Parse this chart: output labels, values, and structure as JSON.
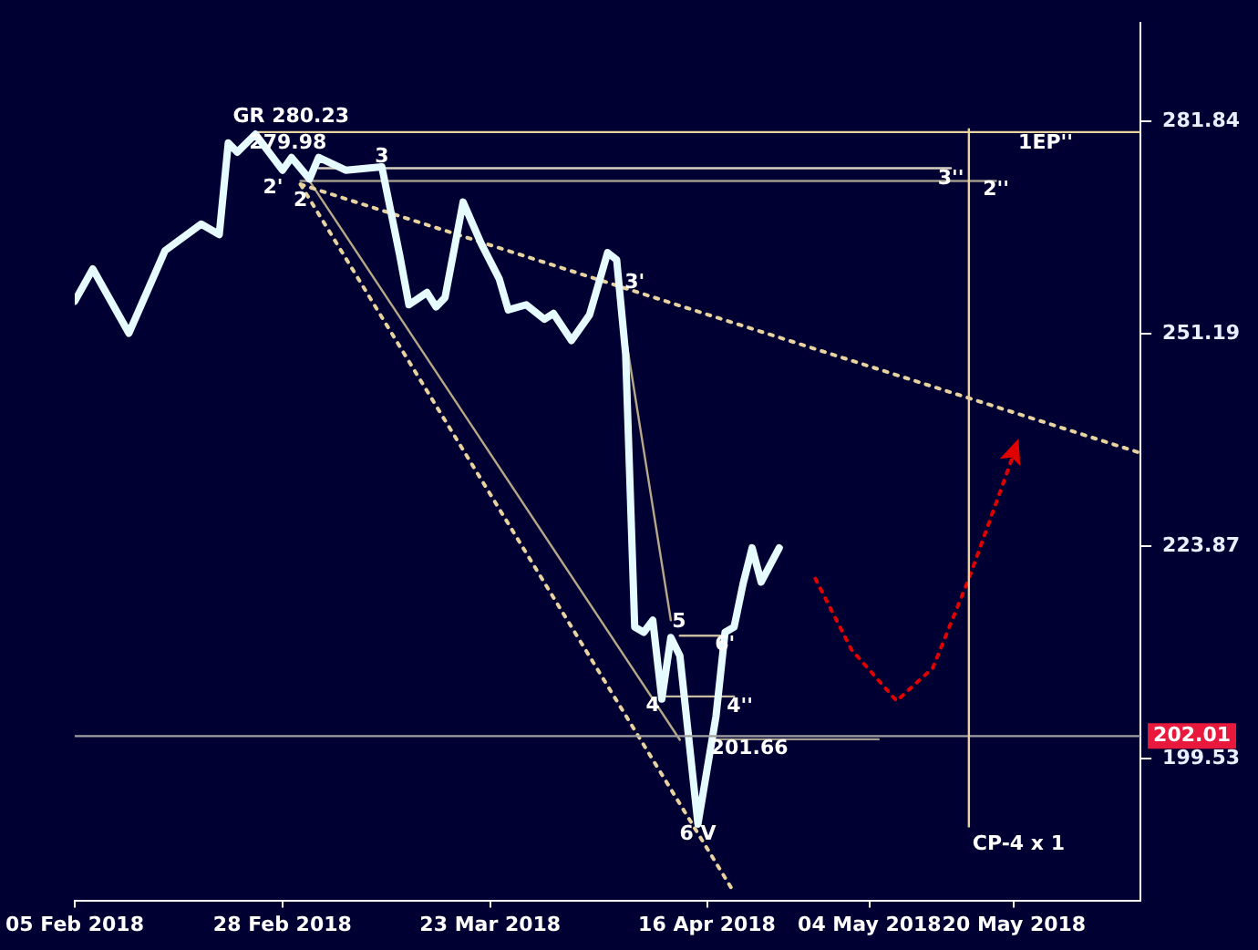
{
  "chart_data": {
    "type": "line",
    "log": "y",
    "grid": false,
    "xlim": [
      "2018-02-05",
      "2018-06-03"
    ],
    "xticks": [
      {
        "value": "2018-02-05",
        "label": "05 Feb 2018"
      },
      {
        "value": "2018-02-28",
        "label": "28 Feb 2018"
      },
      {
        "value": "2018-03-23",
        "label": "23 Mar 2018"
      },
      {
        "value": "2018-04-16",
        "label": "16 Apr 2018"
      },
      {
        "value": "2018-05-04",
        "label": "04 May 2018"
      },
      {
        "value": "2018-05-20",
        "label": "20 May 2018"
      }
    ],
    "ylim": [
      184.8,
      297.3
    ],
    "yticks": [
      199.53,
      223.87,
      251.19,
      281.84
    ],
    "series": [
      {
        "type": "line",
        "color": "#e6fbff",
        "x": [
          "2018-02-05",
          "2018-02-07",
          "2018-02-11",
          "2018-02-15",
          "2018-02-19",
          "2018-02-21",
          "2018-02-22",
          "2018-02-23",
          "2018-02-25",
          "2018-02-28",
          "2018-03-01",
          "2018-03-03",
          "2018-03-04",
          "2018-03-07",
          "2018-03-11",
          "2018-03-13",
          "2018-03-14",
          "2018-03-16",
          "2018-03-17",
          "2018-03-18",
          "2018-03-20",
          "2018-03-22",
          "2018-03-24",
          "2018-03-25",
          "2018-03-27",
          "2018-03-29",
          "2018-03-30",
          "2018-04-01",
          "2018-04-03",
          "2018-04-05",
          "2018-04-06",
          "2018-04-07",
          "2018-04-08",
          "2018-04-09",
          "2018-04-10",
          "2018-04-11",
          "2018-04-12",
          "2018-04-13",
          "2018-04-15",
          "2018-04-17",
          "2018-04-18",
          "2018-04-19",
          "2018-04-20",
          "2018-04-21",
          "2018-04-22",
          "2018-04-24"
        ],
        "values": [
          255.7,
          260.2,
          251.3,
          262.8,
          266.6,
          265.1,
          278.6,
          277.2,
          279.9,
          274.5,
          276.4,
          273.2,
          276.4,
          274.5,
          275.0,
          262.0,
          255.2,
          256.9,
          254.9,
          256.2,
          269.8,
          263.8,
          258.8,
          254.5,
          255.2,
          253.2,
          254.0,
          250.3,
          253.8,
          262.5,
          261.5,
          248.4,
          214.3,
          213.7,
          215.1,
          206.1,
          213.1,
          211.0,
          192.6,
          204.2,
          213.7,
          214.3,
          219.4,
          223.7,
          219.6,
          223.7
        ]
      },
      {
        "type": "line",
        "color": "#e8d3a0",
        "x": [
          "2018-02-25",
          "2018-06-03"
        ],
        "values": [
          280.23,
          280.23
        ]
      },
      {
        "type": "line",
        "color": "#d8d0c0",
        "x": [
          "2018-03-04",
          "2018-05-13"
        ],
        "values": [
          274.8,
          274.8
        ]
      },
      {
        "type": "line",
        "color": "#a09a8a",
        "x": [
          "2018-03-02",
          "2018-05-18"
        ],
        "values": [
          272.9,
          272.9
        ]
      },
      {
        "type": "line",
        "color": "#c8bca0",
        "x": [
          "2018-04-13",
          "2018-04-18"
        ],
        "values": [
          213.3,
          213.3
        ]
      },
      {
        "type": "line",
        "color": "#c8bca0",
        "x": [
          "2018-04-11",
          "2018-04-19"
        ],
        "values": [
          206.4,
          206.4
        ]
      },
      {
        "type": "line",
        "color": "#a09a8a",
        "x": [
          "2018-04-17",
          "2018-05-05"
        ],
        "values": [
          201.66,
          201.66
        ]
      },
      {
        "type": "line",
        "color": "#e8d3a0",
        "line_style": "dotted",
        "x": [
          "2018-03-02",
          "2018-06-03"
        ],
        "values": [
          272.4,
          235.5
        ]
      },
      {
        "type": "line",
        "color": "#e8d3a0",
        "line_style": "dotted",
        "x": [
          "2018-03-02",
          "2018-04-19"
        ],
        "values": [
          272.4,
          185.6
        ]
      },
      {
        "type": "line",
        "color": "#b8a888",
        "x": [
          "2018-03-03",
          "2018-04-13"
        ],
        "values": [
          272.9,
          201.6
        ]
      },
      {
        "type": "line",
        "color": "#b8a888",
        "x": [
          "2018-04-07",
          "2018-04-12"
        ],
        "values": [
          250.8,
          215.1
        ]
      },
      {
        "type": "line",
        "color": "#e00000",
        "line_style": "dotted",
        "x": [
          "2018-04-28",
          "2018-05-02",
          "2018-05-07",
          "2018-05-11",
          "2018-05-15",
          "2018-05-20"
        ],
        "values": [
          220.0,
          211.7,
          205.9,
          209.6,
          220.0,
          235.5
        ]
      }
    ],
    "ref_lines": [
      {
        "axis": "y",
        "value": 202.01,
        "label": "202.01",
        "color": "#a0a0a0"
      },
      {
        "axis": "x",
        "value": "2018-05-15",
        "label": "CP-4 x 1",
        "color": "#e8d3a0"
      }
    ],
    "annotations": [
      "GR 280.23",
      "279.98",
      "2'",
      {
        "text": "3",
        "x": "2018-03-11",
        "y": 276.4
      },
      {
        "text": "2",
        "x": "2018-03-02",
        "y": 270.0
      },
      {
        "text": "3'",
        "x": "2018-04-08",
        "y": 258.3
      },
      "5",
      {
        "text": "6'",
        "x": "2018-04-18",
        "y": 212.2
      },
      {
        "text": "4",
        "x": "2018-04-10",
        "y": 205.3
      },
      "4''",
      "201.66",
      {
        "text": "6 V",
        "x": "2018-04-15",
        "y": 191.5
      },
      {
        "text": "3''",
        "x": "2018-05-13",
        "y": 273.2
      },
      {
        "text": "2''",
        "x": "2018-05-18",
        "y": 271.6
      },
      "1EP''"
    ]
  }
}
